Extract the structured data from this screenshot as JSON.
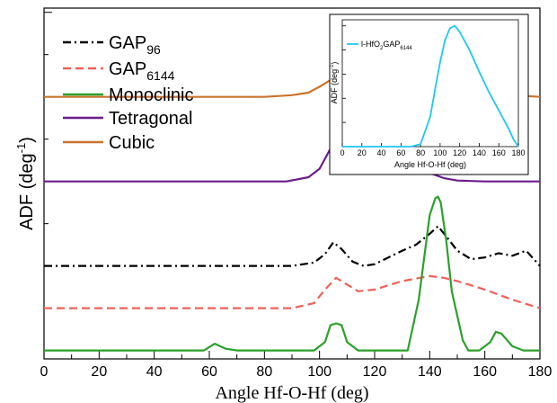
{
  "chart_data": [
    {
      "type": "line",
      "xlabel": "Angle Hf-O-Hf (deg)",
      "ylabel": "ADF (deg",
      "ylabel_sup": "-1",
      "ylabel_close": ")",
      "xlim": [
        0,
        180
      ],
      "xticks": [
        "0",
        "20",
        "40",
        "60",
        "80",
        "100",
        "120",
        "140",
        "160",
        "180"
      ],
      "yticks_labeled": false,
      "grid": false,
      "legend_position": "top-left",
      "series": [
        {
          "name": "GAP",
          "name_sub": "96",
          "color": "#000000",
          "style": "dash-dot",
          "x": [
            0,
            90,
            98,
            102,
            105,
            108,
            112,
            116,
            120,
            125,
            130,
            135,
            140,
            143,
            146,
            150,
            155,
            160,
            165,
            170,
            175,
            180
          ],
          "y": [
            1.0,
            1.0,
            1.04,
            1.14,
            1.28,
            1.2,
            1.05,
            1.0,
            1.02,
            1.1,
            1.18,
            1.25,
            1.38,
            1.47,
            1.35,
            1.18,
            1.08,
            1.1,
            1.15,
            1.12,
            1.18,
            1.0
          ]
        },
        {
          "name": "GAP",
          "name_sub": "6144",
          "color": "#f0605a",
          "style": "dashed",
          "x": [
            0,
            90,
            98,
            102,
            106,
            110,
            114,
            120,
            130,
            140,
            145,
            150,
            160,
            170,
            180
          ],
          "y": [
            0.5,
            0.5,
            0.56,
            0.72,
            0.86,
            0.78,
            0.7,
            0.72,
            0.82,
            0.88,
            0.86,
            0.82,
            0.72,
            0.6,
            0.5
          ]
        },
        {
          "name": "Monoclinic",
          "color": "#2ca02c",
          "style": "solid",
          "x": [
            0,
            58,
            62,
            66,
            70,
            98,
            102,
            104,
            106,
            108,
            110,
            114,
            118,
            132,
            136,
            140,
            142,
            143,
            144,
            146,
            148,
            152,
            154,
            158,
            162,
            164,
            166,
            170,
            174,
            178,
            180
          ],
          "y": [
            0.0,
            0.0,
            0.08,
            0.02,
            0.0,
            0.0,
            0.1,
            0.3,
            0.32,
            0.3,
            0.1,
            0.0,
            0.0,
            0.0,
            0.6,
            1.6,
            1.8,
            1.82,
            1.75,
            1.3,
            0.7,
            0.12,
            0.0,
            0.0,
            0.1,
            0.22,
            0.2,
            0.05,
            0.0,
            0.0,
            0.0
          ]
        },
        {
          "name": "Tetragonal",
          "color": "#6a1e8a",
          "style": "solid",
          "x": [
            0,
            88,
            96,
            100,
            105,
            110,
            115,
            118,
            122,
            126,
            130,
            135,
            140,
            145,
            150,
            160,
            170,
            180
          ],
          "y": [
            2.0,
            2.0,
            2.05,
            2.15,
            2.45,
            2.7,
            2.85,
            2.88,
            2.82,
            2.65,
            2.45,
            2.25,
            2.1,
            2.04,
            2.01,
            2.0,
            2.0,
            2.0
          ]
        },
        {
          "name": "Cubic",
          "color": "#c8742e",
          "style": "solid",
          "x": [
            0,
            80,
            90,
            96,
            100,
            104,
            108,
            112,
            116,
            118,
            120,
            124,
            128,
            132,
            136,
            140,
            145,
            150,
            160,
            170,
            180
          ],
          "y": [
            3.0,
            3.0,
            3.02,
            3.05,
            3.12,
            3.2,
            3.32,
            3.45,
            3.5,
            3.6,
            3.48,
            3.52,
            3.45,
            3.35,
            3.25,
            3.15,
            3.1,
            3.06,
            3.04,
            3.02,
            3.0
          ]
        }
      ]
    },
    {
      "type": "line",
      "inset": true,
      "xlabel": "Angle Hf-O-Hf (deg)",
      "ylabel": "ADF (deg",
      "ylabel_sup": "-1",
      "ylabel_close": ")",
      "xlim": [
        0,
        180
      ],
      "xticks": [
        "0",
        "20",
        "40",
        "60",
        "80",
        "100",
        "120",
        "140",
        "160",
        "180"
      ],
      "legend_position": "top-left",
      "series": [
        {
          "name": "l-HfO",
          "name_sub1": "2",
          "name_mid": "GAP",
          "name_sub2": "6144",
          "color": "#1ec8f0",
          "style": "solid",
          "x": [
            0,
            70,
            80,
            90,
            95,
            100,
            105,
            110,
            115,
            120,
            130,
            140,
            150,
            160,
            170,
            175,
            180
          ],
          "y": [
            0.0,
            0.0,
            0.02,
            0.25,
            0.48,
            0.7,
            0.88,
            0.98,
            1.0,
            0.95,
            0.8,
            0.62,
            0.45,
            0.3,
            0.15,
            0.06,
            0.0
          ]
        }
      ]
    }
  ]
}
